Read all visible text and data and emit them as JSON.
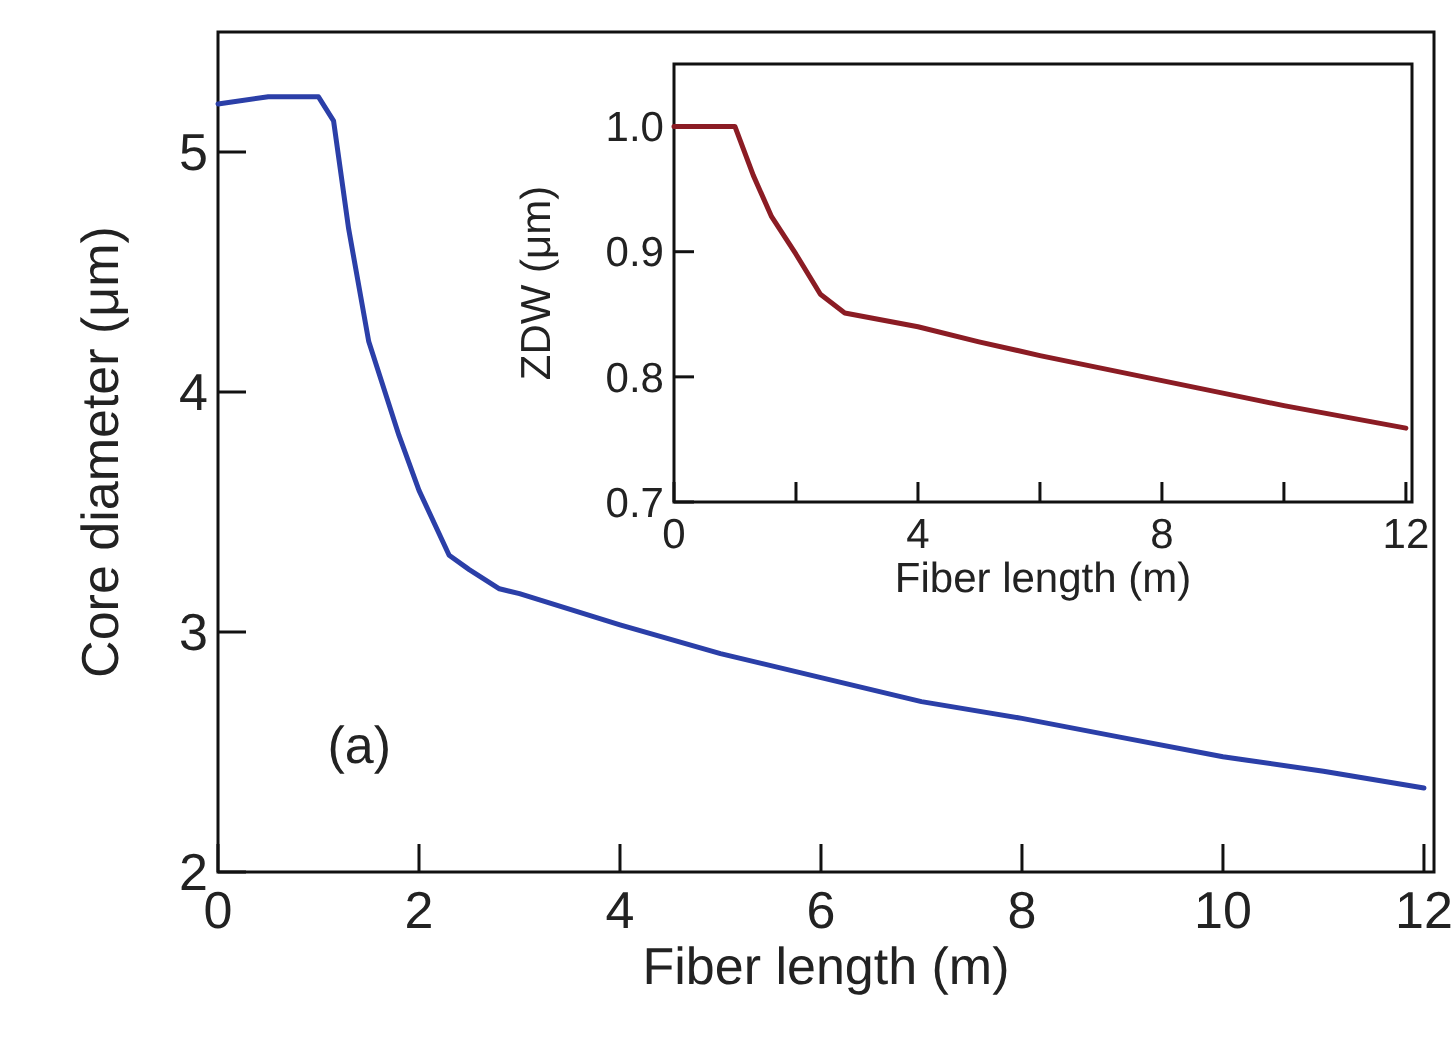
{
  "chart_data": [
    {
      "type": "line",
      "xlabel": "Fiber length (m)",
      "ylabel": "Core diameter (μm)",
      "xlim": [
        0,
        12.1
      ],
      "ylim": [
        2,
        5.5
      ],
      "xticks": [
        0,
        2,
        4,
        6,
        8,
        10,
        12
      ],
      "yticks": [
        2,
        3,
        4,
        5
      ],
      "annotations": [
        "(a)"
      ],
      "grid": false,
      "x": [
        0,
        0.5,
        1.0,
        1.15,
        1.3,
        1.5,
        1.8,
        2.0,
        2.3,
        2.5,
        2.8,
        3,
        4,
        5,
        6,
        7,
        8,
        9,
        10,
        11,
        12
      ],
      "series": [
        {
          "color": "#2b3fa8",
          "values": [
            5.2,
            5.23,
            5.23,
            5.13,
            4.68,
            4.21,
            3.82,
            3.59,
            3.32,
            3.26,
            3.18,
            3.16,
            3.03,
            2.91,
            2.81,
            2.71,
            2.64,
            2.56,
            2.48,
            2.42,
            2.35
          ]
        }
      ]
    },
    {
      "type": "line",
      "xlabel": "Fiber length (m)",
      "ylabel": "ZDW (μm)",
      "xlim": [
        0,
        12.1
      ],
      "ylim": [
        0.7,
        1.05
      ],
      "xticks": [
        0,
        {
          "value": 2,
          "label": null
        },
        4,
        {
          "value": 6,
          "label": null
        },
        8,
        {
          "value": 10,
          "label": null
        },
        12
      ],
      "yticks": [
        0.7,
        0.8,
        0.9,
        {
          "value": 1,
          "label": "1.0"
        }
      ],
      "grid": false,
      "x": [
        0,
        1.0,
        1.3,
        1.6,
        2,
        2.4,
        2.8,
        4,
        5,
        6,
        7,
        8,
        9,
        10,
        11,
        12
      ],
      "series": [
        {
          "color": "#8b1c24",
          "values": [
            1.0,
            1.0,
            0.961,
            0.928,
            0.898,
            0.866,
            0.851,
            0.84,
            0.828,
            0.817,
            0.807,
            0.797,
            0.787,
            0.777,
            0.768,
            0.759
          ]
        }
      ]
    }
  ]
}
